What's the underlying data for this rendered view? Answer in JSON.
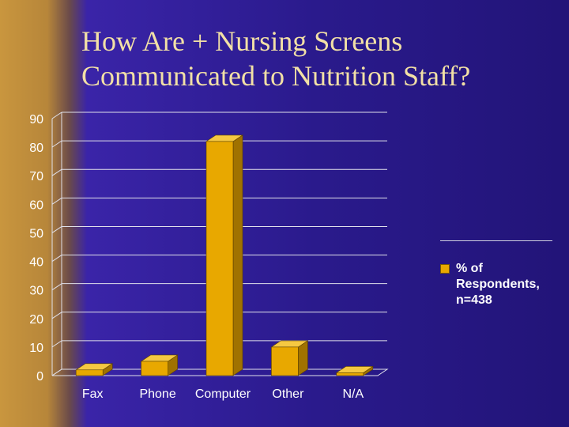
{
  "slide": {
    "title_lines": [
      "How Are + Nursing Screens",
      "Communicated to Nutrition Staff?"
    ]
  },
  "colors": {
    "bar_front": "#e8a800",
    "bar_top": "#f5c842",
    "bar_side": "#a07200",
    "grid": "#e0e0ea",
    "axis_text": "#ffffff",
    "title_text": "#f2e0a6"
  },
  "chart_data": {
    "type": "bar",
    "categories": [
      "Fax",
      "Phone",
      "Computer",
      "Other",
      "N/A"
    ],
    "series": [
      {
        "name": "% of Respondents, n=438",
        "values": [
          2,
          5,
          82,
          10,
          1
        ]
      }
    ],
    "ylim": [
      0,
      90
    ],
    "yticks": [
      0,
      10,
      20,
      30,
      40,
      50,
      60,
      70,
      80,
      90
    ],
    "grid": true,
    "legend_position": "right",
    "style": "3d-column"
  }
}
